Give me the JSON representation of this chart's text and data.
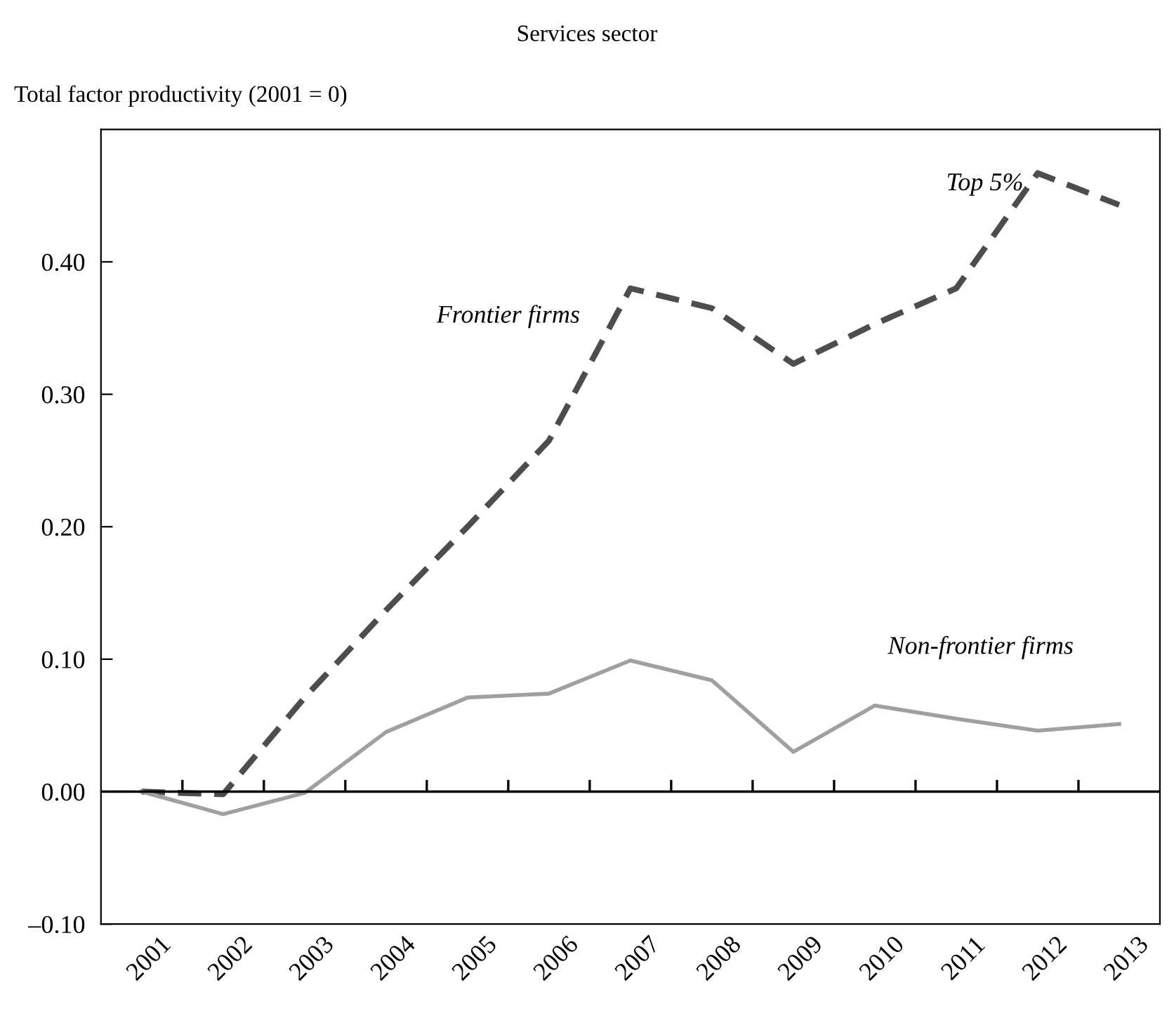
{
  "chart_data": {
    "type": "line",
    "title": "Services sector",
    "ylabel": "Total factor productivity (2001 = 0)",
    "categories": [
      "2001",
      "2002",
      "2003",
      "2004",
      "2005",
      "2006",
      "2007",
      "2008",
      "2009",
      "2010",
      "2011",
      "2012",
      "2013"
    ],
    "series": [
      {
        "name": "Frontier firms",
        "color": "#4d4d4d",
        "line_style": "dashed",
        "values": [
          0,
          -0.002,
          0.071,
          0.137,
          0.2,
          0.265,
          0.38,
          0.365,
          0.323,
          0.353,
          0.38,
          0.467,
          0.443
        ]
      },
      {
        "name": "Non-frontier firms",
        "color": "#a0a0a0",
        "line_style": "solid",
        "values": [
          0,
          -0.017,
          -0.001,
          0.045,
          0.071,
          0.074,
          0.099,
          0.084,
          0.03,
          0.065,
          0.055,
          0.046,
          0.051
        ]
      }
    ],
    "annotations": [
      "Top 5%"
    ],
    "ylim": [
      -0.1,
      0.5
    ],
    "yticks": [
      {
        "value": -0.1,
        "label": "–0.10"
      },
      {
        "value": 0,
        "label": "0.00"
      },
      {
        "value": 0.1,
        "label": "0.10"
      },
      {
        "value": 0.2,
        "label": "0.20"
      },
      {
        "value": 0.3,
        "label": "0.30"
      },
      {
        "value": 0.4,
        "label": "0.40"
      }
    ],
    "ref_lines": [
      {
        "axis": "y",
        "value": 0,
        "color": "#000000"
      }
    ],
    "legend": false,
    "marker": "none"
  }
}
